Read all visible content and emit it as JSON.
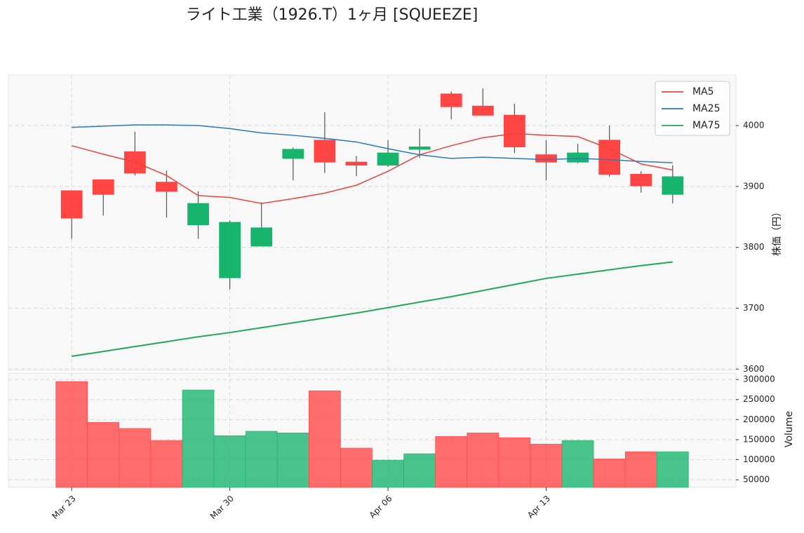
{
  "chart_data": {
    "type": "candlestick",
    "title": "ライト工業（1926.T）1ヶ月 [SQUEEZE]",
    "categories": [
      "Mar 23",
      null,
      null,
      null,
      null,
      "Mar 30",
      null,
      null,
      null,
      null,
      "Apr 06",
      null,
      null,
      null,
      null,
      "Apr 13",
      null,
      null,
      null,
      null
    ],
    "xlim": [
      -2,
      21
    ],
    "open": [
      3893,
      3911,
      3957,
      3907,
      3837,
      3750,
      3802,
      3946,
      3976,
      3940,
      3935,
      3961,
      4052,
      4032,
      4017,
      3952,
      3940,
      3976,
      3920,
      3887
    ],
    "high": [
      3893,
      3911,
      3990,
      3926,
      3892,
      3844,
      3874,
      3964,
      4022,
      3950,
      3976,
      3995,
      4056,
      4061,
      4036,
      3976,
      3970,
      4000,
      3925,
      3935
    ],
    "low": [
      3814,
      3852,
      3918,
      3849,
      3814,
      3731,
      3802,
      3910,
      3922,
      3917,
      3932,
      3947,
      4010,
      4017,
      3955,
      3910,
      3938,
      3916,
      3890,
      3872
    ],
    "close": [
      3848,
      3887,
      3922,
      3892,
      3872,
      3841,
      3832,
      3961,
      3940,
      3935,
      3955,
      3965,
      4031,
      4017,
      3965,
      3940,
      3955,
      3920,
      3901,
      3916
    ],
    "up_color": "#16b46c",
    "down_color": "#ff4444",
    "ylim": [
      3598,
      4083
    ],
    "yticks": [
      3600,
      3700,
      3800,
      3900,
      4000
    ],
    "ylabel": "株価（円）",
    "grid": true,
    "legend": "upper right",
    "series": [
      {
        "name": "MA5",
        "color": "#e8453c",
        "values": [
          3967,
          3953,
          3940,
          3918,
          3885,
          3882,
          3872,
          3880,
          3889,
          3902,
          3925,
          3952,
          3967,
          3980,
          3987,
          3984,
          3982,
          3962,
          3937,
          3927
        ]
      },
      {
        "name": "MA25",
        "color": "#2a7ab8",
        "values": [
          3997,
          3999,
          4001,
          4001,
          4000,
          3995,
          3988,
          3984,
          3979,
          3973,
          3962,
          3952,
          3946,
          3948,
          3946,
          3944,
          3946,
          3944,
          3941,
          3939
        ]
      },
      {
        "name": "MA75",
        "color": "#22a85a",
        "values": [
          3621,
          3629,
          3637,
          3645,
          3653,
          3660,
          3668,
          3676,
          3684,
          3692,
          3701,
          3710,
          3719,
          3729,
          3739,
          3749,
          3756,
          3763,
          3770,
          3776
        ]
      }
    ],
    "volume": {
      "values": [
        295000,
        193000,
        178000,
        148000,
        274000,
        160000,
        171000,
        167000,
        272000,
        129000,
        99000,
        115000,
        158000,
        167000,
        155000,
        139000,
        148000,
        102000,
        120000,
        120000
      ],
      "ylim": [
        31000,
        316000
      ],
      "yticks": [
        50000,
        100000,
        150000,
        200000,
        250000,
        300000
      ],
      "ylabel": "Volume"
    }
  }
}
